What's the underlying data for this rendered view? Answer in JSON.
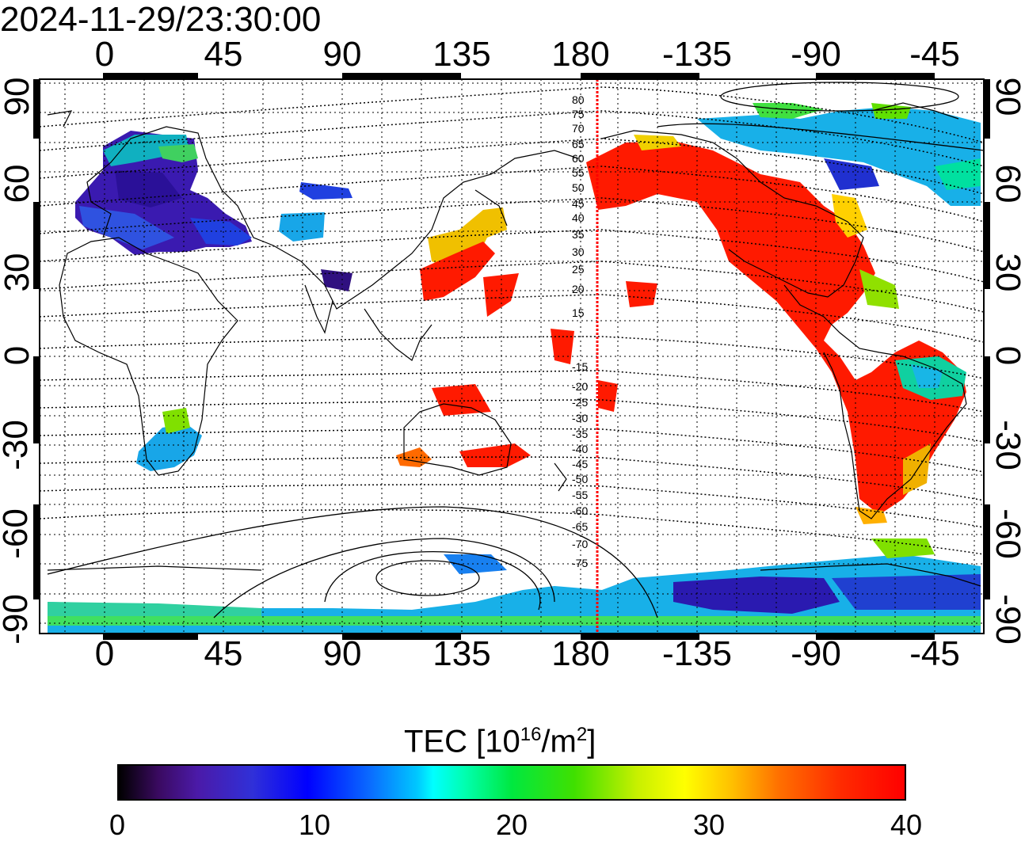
{
  "timestamp": "2024-11-29/23:30:00",
  "map": {
    "top_lon_ticks": [
      "0",
      "45",
      "90",
      "135",
      "180",
      "-135",
      "-90",
      "-45"
    ],
    "bottom_lon_ticks": [
      "0",
      "45",
      "90",
      "135",
      "180",
      "-135",
      "-90",
      "-45"
    ],
    "left_lat_ticks": [
      "90",
      "60",
      "30",
      "0",
      "-30",
      "-60",
      "-90"
    ],
    "right_lat_ticks": [
      "90",
      "60",
      "30",
      "0",
      "-30",
      "-60",
      "-90"
    ],
    "contour_labels": [
      "80",
      "75",
      "70",
      "65",
      "60",
      "55",
      "50",
      "45",
      "40",
      "35",
      "30",
      "25",
      "20",
      "15",
      "-15",
      "-20",
      "-25",
      "-30",
      "-35",
      "-40",
      "-45",
      "-50",
      "-55",
      "-60",
      "-65",
      "-70",
      "-75"
    ],
    "colors": {
      "high_tec": "#ff0000",
      "terminator_line": "#ff0000"
    }
  },
  "colorbar": {
    "title_main": "TEC  [10",
    "title_sup1": "16",
    "title_mid": "/m",
    "title_sup2": "2",
    "title_end": "]",
    "ticks": [
      "0",
      "10",
      "20",
      "30",
      "40"
    ],
    "min": 0,
    "max": 40
  }
}
